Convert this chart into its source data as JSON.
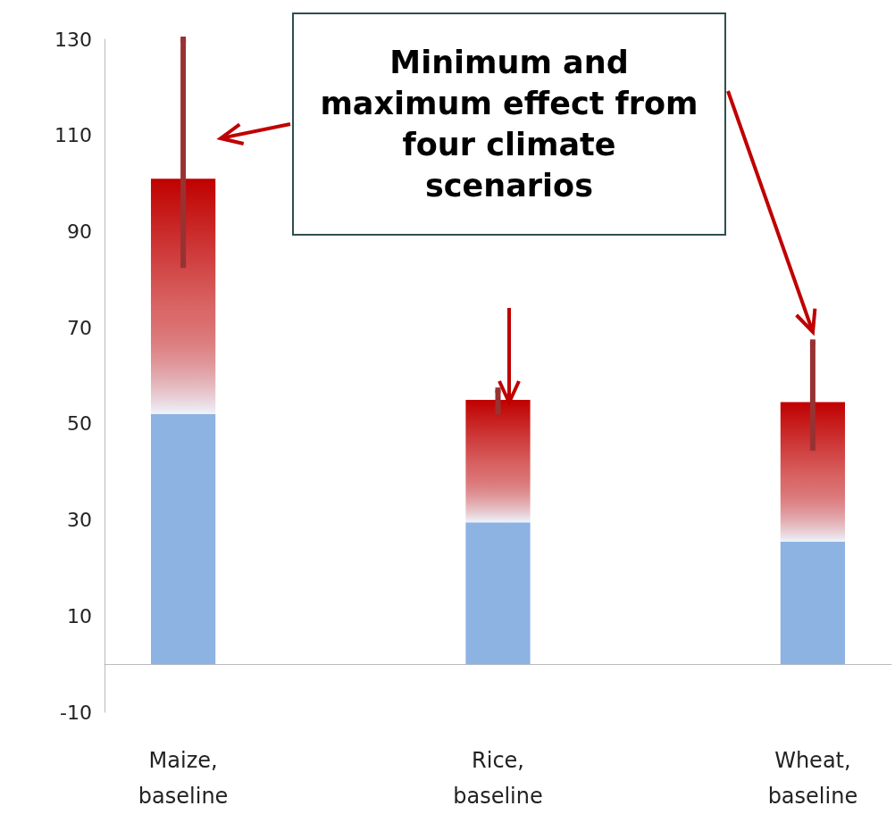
{
  "chart_data": {
    "type": "bar",
    "stacked": true,
    "categories": [
      "Maize,\nbaseline",
      null,
      "Rice,\nbaseline",
      null,
      "Wheat,\nbaseline"
    ],
    "series": [
      {
        "color": "#8db3e2",
        "values": [
          52,
          null,
          29.5,
          null,
          25.5
        ]
      },
      {
        "color": "#c00000",
        "values": [
          49,
          null,
          25.5,
          null,
          29
        ],
        "errors": [
          [
            83,
            130
          ],
          null,
          [
            52.5,
            57
          ],
          null,
          [
            45,
            67
          ]
        ]
      }
    ],
    "ylim": [
      -10,
      130
    ],
    "yticks": [
      -10,
      10,
      30,
      50,
      70,
      90,
      110,
      130
    ],
    "annotations": [
      "Minimum and maximum effect from four climate scenarios"
    ]
  }
}
